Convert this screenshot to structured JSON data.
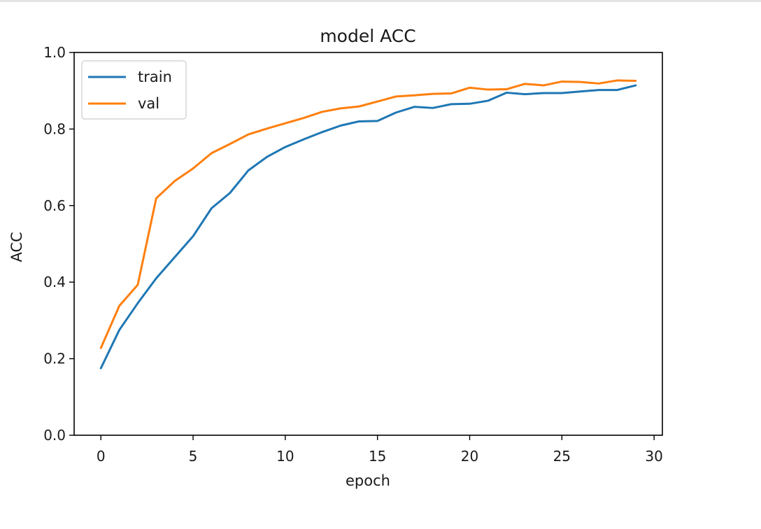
{
  "chart_data": {
    "type": "line",
    "title": "model ACC",
    "xlabel": "epoch",
    "ylabel": "ACC",
    "xlim": [
      -1.45,
      30.45
    ],
    "ylim": [
      0.0,
      1.0
    ],
    "x_ticks": [
      0,
      5,
      10,
      15,
      20,
      25,
      30
    ],
    "y_ticks": [
      "0.0",
      "0.2",
      "0.4",
      "0.6",
      "0.8",
      "1.0"
    ],
    "grid": false,
    "legend_position": "upper-left",
    "x": [
      0,
      1,
      2,
      3,
      4,
      5,
      6,
      7,
      8,
      9,
      10,
      11,
      12,
      13,
      14,
      15,
      16,
      17,
      18,
      19,
      20,
      21,
      22,
      23,
      24,
      25,
      26,
      27,
      28,
      29
    ],
    "series": [
      {
        "name": "train",
        "color": "#1f77b4",
        "values": [
          0.175,
          0.275,
          0.345,
          0.41,
          0.465,
          0.52,
          0.593,
          0.633,
          0.692,
          0.727,
          0.753,
          0.773,
          0.792,
          0.809,
          0.82,
          0.821,
          0.843,
          0.858,
          0.855,
          0.865,
          0.866,
          0.874,
          0.895,
          0.891,
          0.894,
          0.894,
          0.898,
          0.902,
          0.902,
          0.914
        ]
      },
      {
        "name": "val",
        "color": "#ff7f0e",
        "values": [
          0.228,
          0.338,
          0.393,
          0.619,
          0.664,
          0.697,
          0.737,
          0.761,
          0.786,
          0.801,
          0.815,
          0.829,
          0.845,
          0.854,
          0.859,
          0.872,
          0.885,
          0.888,
          0.892,
          0.893,
          0.908,
          0.903,
          0.904,
          0.918,
          0.914,
          0.924,
          0.923,
          0.919,
          0.927,
          0.926
        ]
      }
    ]
  }
}
